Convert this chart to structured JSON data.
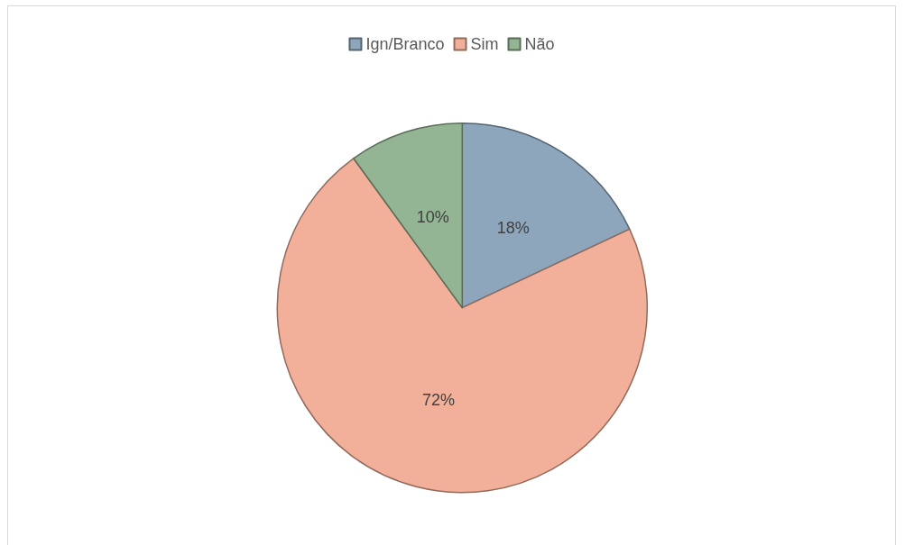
{
  "chart_data": {
    "type": "pie",
    "categories": [
      "Ign/Branco",
      "Sim",
      "Não"
    ],
    "values": [
      18,
      72,
      10
    ],
    "colors": [
      "#8ea6bc",
      "#f2b09a",
      "#94b594"
    ],
    "value_labels": [
      "18%",
      "72%",
      "10%"
    ],
    "legend": "top"
  }
}
